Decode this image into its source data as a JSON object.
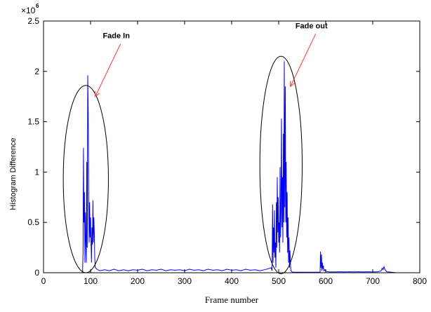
{
  "chart_data": {
    "type": "line",
    "xlabel": "Frame number",
    "ylabel": "Histogram Difference",
    "xlim": [
      0,
      800
    ],
    "ylim": [
      0,
      2.5
    ],
    "y_multiplier_text": "×10",
    "y_multiplier_exponent": "6",
    "x_ticks": [
      "0",
      "100",
      "200",
      "300",
      "400",
      "500",
      "600",
      "700",
      "800"
    ],
    "y_ticks": [
      "0",
      "0.5",
      "1",
      "1.5",
      "2",
      "2.5"
    ],
    "grid": false,
    "series_color": "#0000ff",
    "series": [
      {
        "x": [
          0,
          83,
          84,
          85,
          86,
          87,
          88,
          89,
          90,
          91,
          92,
          93,
          94,
          95,
          96,
          97,
          98,
          99,
          100,
          101,
          102,
          103,
          104,
          105,
          106,
          107,
          108,
          109,
          110,
          115,
          120,
          130,
          140,
          150,
          160,
          170,
          180,
          190,
          200,
          210,
          220,
          230,
          240,
          250,
          260,
          270,
          280,
          290,
          300,
          310,
          320,
          330,
          340,
          350,
          360,
          370,
          380,
          390,
          400,
          410,
          420,
          430,
          440,
          450,
          460,
          470,
          478,
          484,
          486,
          487,
          488,
          489,
          490,
          491,
          492,
          493,
          494,
          495,
          496,
          497,
          498,
          499,
          500,
          501,
          502,
          503,
          504,
          505,
          506,
          507,
          508,
          509,
          510,
          511,
          512,
          513,
          514,
          515,
          516,
          517,
          518,
          519,
          520,
          521,
          522,
          523,
          524,
          525,
          526,
          528,
          530,
          540,
          550,
          560,
          570,
          580,
          588,
          589,
          590,
          591,
          592,
          593,
          594,
          595,
          596,
          598,
          600,
          605,
          610,
          620,
          630,
          640,
          650,
          660,
          670,
          680,
          690,
          700,
          710,
          715,
          718,
          720,
          722,
          724,
          726,
          730,
          740,
          750
        ],
        "y": [
          0,
          0,
          0.2,
          1.24,
          0.5,
          0.8,
          0.1,
          0.6,
          0.3,
          0.1,
          1.1,
          0.25,
          1.96,
          1.58,
          0.8,
          0.3,
          0.7,
          0.35,
          0.55,
          0.3,
          0.1,
          0.45,
          0.28,
          0.72,
          0.3,
          0.55,
          0.4,
          0.15,
          0.05,
          0.03,
          0.02,
          0.03,
          0.02,
          0.035,
          0.02,
          0.03,
          0.02,
          0.03,
          0.025,
          0.035,
          0.02,
          0.03,
          0.025,
          0.035,
          0.02,
          0.03,
          0.025,
          0.03,
          0.02,
          0.035,
          0.025,
          0.03,
          0.02,
          0.035,
          0.025,
          0.03,
          0.02,
          0.035,
          0.025,
          0.03,
          0.02,
          0.035,
          0.025,
          0.03,
          0.02,
          0.03,
          0.04,
          0.05,
          0.02,
          0.68,
          0.1,
          0.45,
          0.2,
          0.62,
          0.15,
          0.3,
          0.05,
          0.7,
          0.25,
          0.95,
          0.4,
          0.75,
          0.3,
          0.5,
          0.2,
          1.05,
          0.35,
          0.6,
          1.53,
          0.45,
          0.95,
          0.3,
          1.38,
          0.5,
          2.1,
          0.65,
          1.85,
          0.5,
          1.1,
          0.35,
          0.8,
          0.2,
          0.55,
          0.1,
          0.35,
          0.05,
          0.22,
          0.08,
          0.02,
          0.01,
          0.005,
          0.005,
          0.005,
          0.005,
          0.005,
          0.005,
          0.005,
          0.21,
          0.05,
          0.18,
          0.02,
          0.1,
          0.04,
          0.07,
          0.02,
          0.03,
          0.015,
          0.01,
          0.008,
          0.008,
          0.01,
          0.008,
          0.01,
          0.008,
          0.01,
          0.008,
          0.01,
          0.008,
          0.01,
          0.015,
          0.02,
          0.045,
          0.03,
          0.06,
          0.03,
          0.01,
          0.005,
          0
        ]
      }
    ],
    "annotations": [
      {
        "text": "Fade In",
        "ellipse_center": [
          90,
          0.93
        ],
        "ellipse_radius": [
          48,
          0.93
        ],
        "arrow_to": [
          110,
          1.75
        ]
      },
      {
        "text": "Fade out",
        "ellipse_center": [
          505,
          1.07
        ],
        "ellipse_radius": [
          45,
          1.08
        ],
        "arrow_to": [
          525,
          1.85
        ]
      }
    ]
  }
}
